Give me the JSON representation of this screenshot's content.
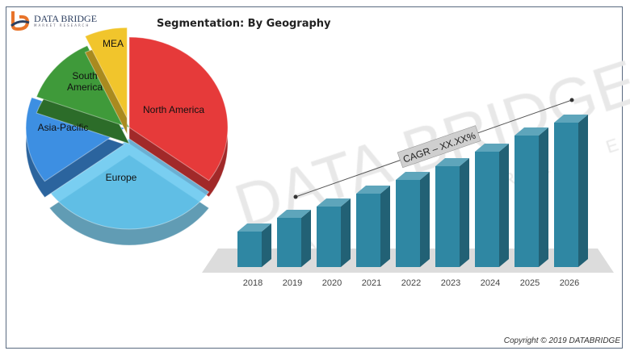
{
  "logo": {
    "name": "DATA BRIDGE",
    "sub": "MARKET RESEARCH"
  },
  "watermark": {
    "main": "DATA BRIDGE",
    "sub": "MARKET RESEARCH"
  },
  "copyright": "Copyright © 2019 DATABRIDGE",
  "chart_data": [
    {
      "type": "pie",
      "title": "Segmentation: By Geography",
      "style": "3d-exploded",
      "slices": [
        {
          "label": "North America",
          "share_estimate": 35,
          "color": "#e63a3a"
        },
        {
          "label": "Europe",
          "share_estimate": 30,
          "color": "#62c6ef"
        },
        {
          "label": "Asia-Pacific",
          "share_estimate": 15.5,
          "color": "#3d8fe2"
        },
        {
          "label": "South America",
          "share_estimate": 12.5,
          "color": "#3f9a3a"
        },
        {
          "label": "MEA",
          "share_estimate": 7,
          "color": "#f1c52c"
        }
      ]
    },
    {
      "type": "bar",
      "style": "3d",
      "categories": [
        "2018",
        "2019",
        "2020",
        "2021",
        "2022",
        "2023",
        "2024",
        "2025",
        "2026"
      ],
      "values_relative": [
        44,
        61,
        75,
        91,
        108,
        125,
        143,
        163,
        179
      ],
      "color": "#2f87a3",
      "annotation": "CAGR – XX.XX%"
    }
  ]
}
